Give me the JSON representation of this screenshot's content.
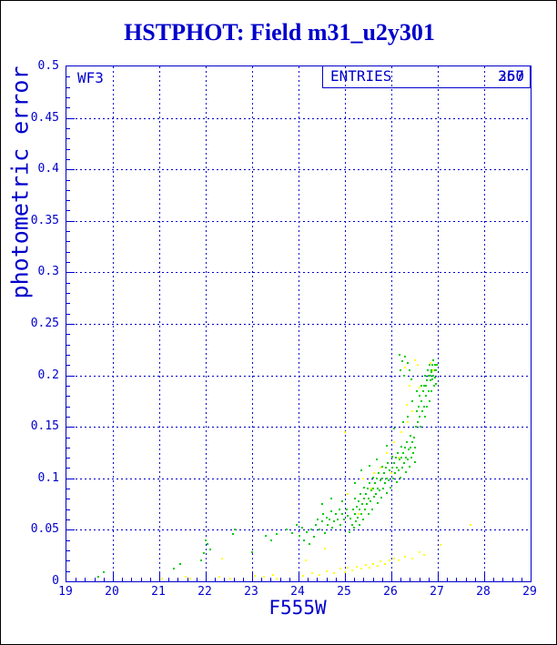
{
  "title": "HSTPHOT: Field m31_u2y301",
  "plot": {
    "detector_label": "WF3",
    "entries": {
      "label": "ENTRIES",
      "values": [
        "260",
        "357"
      ]
    },
    "colors": {
      "axis": "#0000cc",
      "title": "#0000cc",
      "series_green": "#00cc00",
      "series_yellow": "#ffff00",
      "background": "#ffffff",
      "frame": "#000000"
    }
  },
  "chart_data": {
    "type": "scatter",
    "title": "HSTPHOT: Field m31_u2y301",
    "xlabel": "F555W",
    "ylabel": "photometric error",
    "xlim": [
      19,
      29
    ],
    "ylim": [
      0,
      0.5
    ],
    "grid": "dashed lines at every major tick",
    "legend_position": "none",
    "x_major_ticks": [
      19,
      20,
      21,
      22,
      23,
      24,
      25,
      26,
      27,
      28,
      29
    ],
    "x_tick_labels": [
      "19",
      "20",
      "21",
      "22",
      "23",
      "24",
      "25",
      "26",
      "27",
      "28",
      "29"
    ],
    "x_minor_step": 0.2,
    "y_major_ticks": [
      0,
      0.05,
      0.1,
      0.15,
      0.2,
      0.25,
      0.3,
      0.35,
      0.4,
      0.45,
      0.5
    ],
    "y_tick_labels": [
      "0",
      "0.05",
      "0.1",
      "0.15",
      "0.2",
      "0.25",
      "0.3",
      "0.35",
      "0.4",
      "0.45",
      "0.5"
    ],
    "y_minor_step": 0.01,
    "series": [
      {
        "name": "stars-green",
        "color": "#00cc00",
        "marker": "square-2px",
        "points": [
          [
            19.68,
            0.004
          ],
          [
            19.8,
            0.009
          ],
          [
            21.32,
            0.012
          ],
          [
            21.46,
            0.017
          ],
          [
            21.9,
            0.02
          ],
          [
            21.97,
            0.027
          ],
          [
            22.0,
            0.04
          ],
          [
            22.04,
            0.036
          ],
          [
            22.1,
            0.031
          ],
          [
            22.58,
            0.046
          ],
          [
            22.63,
            0.05
          ],
          [
            23.0,
            0.028
          ],
          [
            23.3,
            0.044
          ],
          [
            23.42,
            0.04
          ],
          [
            23.53,
            0.046
          ],
          [
            23.75,
            0.05
          ],
          [
            23.86,
            0.047
          ],
          [
            23.96,
            0.055
          ],
          [
            24.02,
            0.044
          ],
          [
            24.08,
            0.052
          ],
          [
            24.12,
            0.04
          ],
          [
            24.18,
            0.048
          ],
          [
            24.24,
            0.036
          ],
          [
            24.28,
            0.05
          ],
          [
            24.33,
            0.043
          ],
          [
            24.38,
            0.055
          ],
          [
            24.42,
            0.06
          ],
          [
            24.46,
            0.05
          ],
          [
            24.5,
            0.058
          ],
          [
            24.52,
            0.065
          ],
          [
            24.56,
            0.047
          ],
          [
            24.6,
            0.062
          ],
          [
            24.63,
            0.055
          ],
          [
            24.67,
            0.06
          ],
          [
            24.7,
            0.068
          ],
          [
            24.73,
            0.052
          ],
          [
            24.77,
            0.058
          ],
          [
            24.8,
            0.065
          ],
          [
            24.84,
            0.06
          ],
          [
            24.88,
            0.07
          ],
          [
            24.91,
            0.055
          ],
          [
            24.95,
            0.065
          ],
          [
            24.99,
            0.06
          ],
          [
            25.03,
            0.07
          ],
          [
            25.06,
            0.064
          ],
          [
            25.1,
            0.048
          ],
          [
            25.12,
            0.061
          ],
          [
            25.15,
            0.055
          ],
          [
            25.17,
            0.07
          ],
          [
            25.19,
            0.052
          ],
          [
            25.21,
            0.065
          ],
          [
            25.21,
            0.08
          ],
          [
            25.23,
            0.058
          ],
          [
            25.25,
            0.072
          ],
          [
            25.27,
            0.062
          ],
          [
            25.29,
            0.078
          ],
          [
            25.31,
            0.055
          ],
          [
            25.31,
            0.07
          ],
          [
            25.33,
            0.085
          ],
          [
            25.35,
            0.065
          ],
          [
            25.37,
            0.075
          ],
          [
            25.39,
            0.06
          ],
          [
            25.41,
            0.08
          ],
          [
            25.41,
            0.091
          ],
          [
            25.43,
            0.07
          ],
          [
            25.45,
            0.085
          ],
          [
            25.47,
            0.075
          ],
          [
            25.49,
            0.09
          ],
          [
            25.51,
            0.065
          ],
          [
            25.51,
            0.08
          ],
          [
            25.53,
            0.095
          ],
          [
            25.55,
            0.078
          ],
          [
            25.57,
            0.088
          ],
          [
            25.59,
            0.07
          ],
          [
            25.61,
            0.09
          ],
          [
            25.61,
            0.101
          ],
          [
            25.63,
            0.082
          ],
          [
            25.65,
            0.095
          ],
          [
            25.67,
            0.085
          ],
          [
            25.69,
            0.1
          ],
          [
            25.71,
            0.076
          ],
          [
            25.71,
            0.09
          ],
          [
            25.73,
            0.105
          ],
          [
            25.75,
            0.088
          ],
          [
            25.77,
            0.098
          ],
          [
            25.79,
            0.081
          ],
          [
            25.81,
            0.1
          ],
          [
            25.81,
            0.111
          ],
          [
            25.83,
            0.09
          ],
          [
            25.85,
            0.105
          ],
          [
            25.87,
            0.095
          ],
          [
            25.89,
            0.11
          ],
          [
            25.91,
            0.086
          ],
          [
            25.91,
            0.1
          ],
          [
            25.93,
            0.115
          ],
          [
            25.95,
            0.098
          ],
          [
            25.97,
            0.108
          ],
          [
            25.99,
            0.091
          ],
          [
            26.01,
            0.11
          ],
          [
            26.01,
            0.121
          ],
          [
            26.03,
            0.1
          ],
          [
            26.05,
            0.115
          ],
          [
            26.07,
            0.105
          ],
          [
            26.09,
            0.12
          ],
          [
            26.11,
            0.096
          ],
          [
            26.11,
            0.11
          ],
          [
            26.13,
            0.125
          ],
          [
            26.15,
            0.108
          ],
          [
            26.17,
            0.118
          ],
          [
            26.19,
            0.101
          ],
          [
            26.21,
            0.12
          ],
          [
            26.21,
            0.131
          ],
          [
            26.23,
            0.11
          ],
          [
            26.25,
            0.125
          ],
          [
            26.27,
            0.115
          ],
          [
            26.29,
            0.13
          ],
          [
            26.31,
            0.106
          ],
          [
            26.31,
            0.12
          ],
          [
            26.33,
            0.135
          ],
          [
            26.35,
            0.118
          ],
          [
            26.37,
            0.128
          ],
          [
            26.39,
            0.111
          ],
          [
            26.41,
            0.13
          ],
          [
            26.41,
            0.141
          ],
          [
            26.43,
            0.12
          ],
          [
            26.45,
            0.135
          ],
          [
            26.47,
            0.125
          ],
          [
            26.49,
            0.14
          ],
          [
            26.51,
            0.116
          ],
          [
            26.51,
            0.13
          ],
          [
            26.52,
            0.15
          ],
          [
            26.54,
            0.165
          ],
          [
            26.56,
            0.155
          ],
          [
            26.58,
            0.17
          ],
          [
            26.6,
            0.16
          ],
          [
            26.6,
            0.18
          ],
          [
            26.62,
            0.15
          ],
          [
            26.64,
            0.175
          ],
          [
            26.66,
            0.165
          ],
          [
            26.68,
            0.185
          ],
          [
            26.7,
            0.17
          ],
          [
            26.7,
            0.19
          ],
          [
            26.72,
            0.16
          ],
          [
            26.72,
            0.2
          ],
          [
            26.74,
            0.18
          ],
          [
            26.76,
            0.195
          ],
          [
            26.76,
            0.17
          ],
          [
            26.78,
            0.205
          ],
          [
            26.8,
            0.185
          ],
          [
            26.8,
            0.2
          ],
          [
            26.82,
            0.175
          ],
          [
            26.82,
            0.21
          ],
          [
            26.84,
            0.195
          ],
          [
            26.86,
            0.205
          ],
          [
            26.86,
            0.185
          ],
          [
            26.88,
            0.21
          ],
          [
            26.88,
            0.196
          ],
          [
            26.9,
            0.2
          ],
          [
            26.9,
            0.215
          ],
          [
            26.92,
            0.19
          ],
          [
            26.92,
            0.205
          ],
          [
            26.94,
            0.21
          ],
          [
            26.94,
            0.198
          ],
          [
            26.96,
            0.205
          ],
          [
            26.96,
            0.192
          ],
          [
            26.98,
            0.21
          ],
          [
            26.85,
            0.2
          ],
          [
            26.87,
            0.203
          ],
          [
            26.75,
            0.19
          ],
          [
            26.65,
            0.19
          ],
          [
            26.55,
            0.185
          ],
          [
            26.45,
            0.175
          ],
          [
            26.35,
            0.16
          ],
          [
            26.25,
            0.155
          ],
          [
            26.18,
            0.22
          ],
          [
            26.24,
            0.214
          ],
          [
            26.3,
            0.218
          ],
          [
            26.36,
            0.212
          ],
          [
            26.2,
            0.205
          ],
          [
            26.28,
            0.2
          ],
          [
            26.4,
            0.205
          ],
          [
            26.44,
            0.196
          ],
          [
            25.36,
            0.108
          ],
          [
            25.52,
            0.112
          ],
          [
            25.68,
            0.118
          ],
          [
            25.9,
            0.132
          ],
          [
            26.05,
            0.148
          ],
          [
            25.22,
            0.095
          ],
          [
            24.7,
            0.08
          ],
          [
            24.5,
            0.075
          ],
          [
            24.95,
            0.078
          ]
        ]
      },
      {
        "name": "stars-yellow",
        "color": "#ffff00",
        "marker": "square-2px",
        "points": [
          [
            21.05,
            0.003
          ],
          [
            21.56,
            0.004
          ],
          [
            21.66,
            0.003
          ],
          [
            22.3,
            0.004
          ],
          [
            22.52,
            0.003
          ],
          [
            23.06,
            0.005
          ],
          [
            23.26,
            0.004
          ],
          [
            23.46,
            0.006
          ],
          [
            23.52,
            0.003
          ],
          [
            24.1,
            0.005
          ],
          [
            24.3,
            0.008
          ],
          [
            24.46,
            0.006
          ],
          [
            24.6,
            0.01
          ],
          [
            24.76,
            0.008
          ],
          [
            24.9,
            0.012
          ],
          [
            25.0,
            0.009
          ],
          [
            25.06,
            0.013
          ],
          [
            25.16,
            0.011
          ],
          [
            25.26,
            0.014
          ],
          [
            25.36,
            0.012
          ],
          [
            25.46,
            0.016
          ],
          [
            25.52,
            0.013
          ],
          [
            25.6,
            0.017
          ],
          [
            25.7,
            0.015
          ],
          [
            25.76,
            0.019
          ],
          [
            25.86,
            0.017
          ],
          [
            25.96,
            0.02
          ],
          [
            26.06,
            0.022
          ],
          [
            26.16,
            0.02
          ],
          [
            26.3,
            0.024
          ],
          [
            26.46,
            0.022
          ],
          [
            26.6,
            0.028
          ],
          [
            26.7,
            0.026
          ],
          [
            22.36,
            0.022
          ],
          [
            24.16,
            0.02
          ],
          [
            24.56,
            0.032
          ],
          [
            25.05,
            0.085
          ],
          [
            25.0,
            0.145
          ],
          [
            25.3,
            0.065
          ],
          [
            25.4,
            0.1
          ],
          [
            25.56,
            0.09
          ],
          [
            25.62,
            0.105
          ],
          [
            25.76,
            0.11
          ],
          [
            25.9,
            0.125
          ],
          [
            26.0,
            0.105
          ],
          [
            26.06,
            0.135
          ],
          [
            26.16,
            0.12
          ],
          [
            26.22,
            0.145
          ],
          [
            26.33,
            0.171
          ],
          [
            26.36,
            0.155
          ],
          [
            26.4,
            0.19
          ],
          [
            26.46,
            0.165
          ],
          [
            26.5,
            0.215
          ],
          [
            26.56,
            0.21
          ],
          [
            26.6,
            0.188
          ],
          [
            26.85,
            0.212
          ],
          [
            26.9,
            0.205
          ],
          [
            26.3,
            0.208
          ],
          [
            27.05,
            0.035
          ],
          [
            27.7,
            0.055
          ]
        ]
      }
    ]
  }
}
